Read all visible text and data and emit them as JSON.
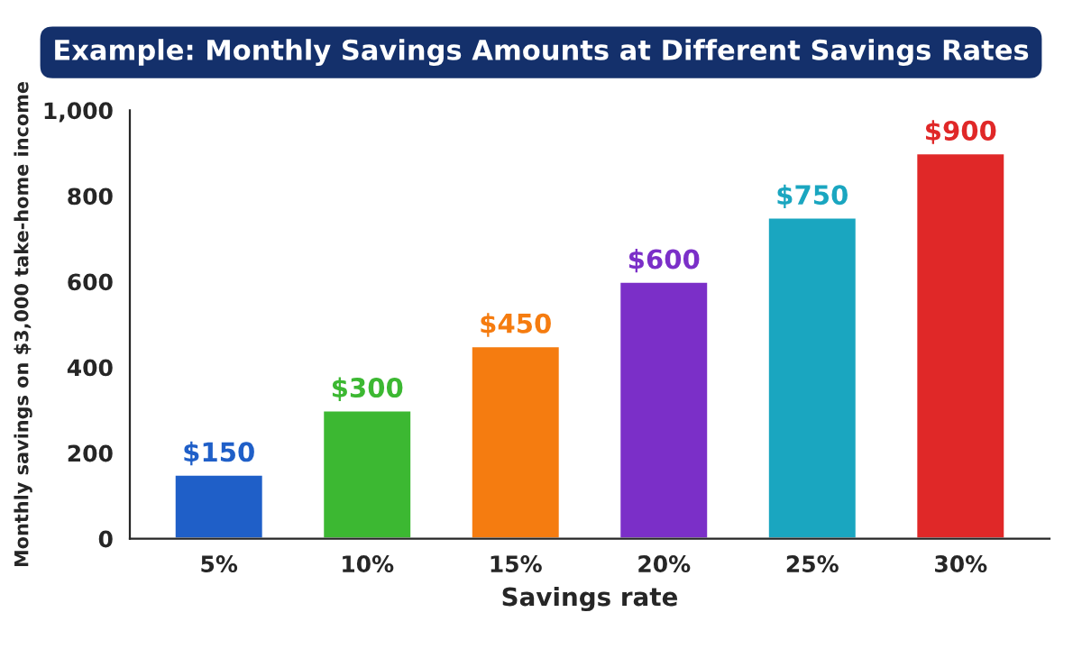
{
  "chart_data": {
    "type": "bar",
    "title": "Example: Monthly Savings Amounts at Different Savings Rates",
    "xlabel": "Savings rate",
    "ylabel": "Monthly savings on $3,000 take-home income",
    "categories": [
      "5%",
      "10%",
      "15%",
      "20%",
      "25%",
      "30%"
    ],
    "values": [
      150,
      300,
      450,
      600,
      750,
      900
    ],
    "colors": [
      "#1f5fc8",
      "#3cb832",
      "#f57c10",
      "#7b2fc8",
      "#1aa6c0",
      "#e02828"
    ],
    "value_labels": [
      "$150",
      "$300",
      "$450",
      "$600",
      "$750",
      "$900"
    ],
    "ylim": [
      0,
      1000
    ],
    "yticks": [
      0,
      200,
      400,
      600,
      800,
      {
        "value": 1000,
        "label": "1,000"
      }
    ],
    "grid": false,
    "legend": false
  }
}
